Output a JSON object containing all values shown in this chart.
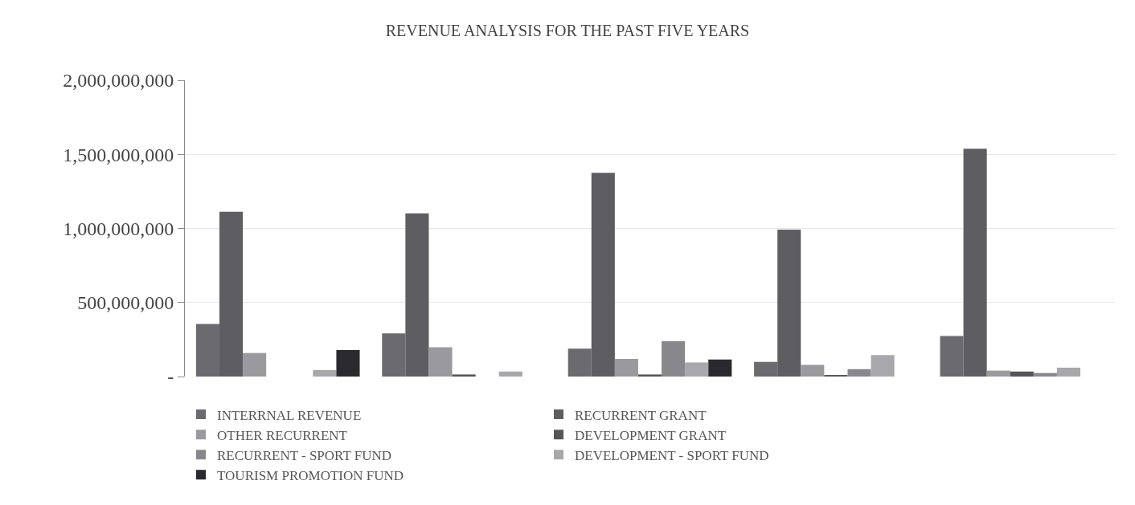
{
  "chart_data": {
    "type": "bar",
    "title": "REVENUE ANALYSIS FOR THE PAST FIVE YEARS",
    "categories": [
      null,
      null,
      null,
      null,
      null
    ],
    "series": [
      {
        "name": "INTERRNAL REVENUE",
        "color": "#6b6b6f",
        "values": [
          355000000,
          292000000,
          188000000,
          99000000,
          274000000
        ]
      },
      {
        "name": "RECURRENT GRANT",
        "color": "#5e5e62",
        "values": [
          1113000000,
          1101000000,
          1375000000,
          992000000,
          1538000000
        ]
      },
      {
        "name": "OTHER RECURRENT",
        "color": "#9a9a9e",
        "values": [
          159000000,
          198000000,
          119000000,
          79000000,
          40000000
        ]
      },
      {
        "name": "DEVELOPMENT GRANT",
        "color": "#56565a",
        "values": [
          null,
          14000000,
          14000000,
          8000000,
          34000000
        ]
      },
      {
        "name": "RECURRENT - SPORT FUND",
        "color": "#88888c",
        "values": [
          null,
          null,
          238000000,
          50000000,
          24000000
        ]
      },
      {
        "name": "DEVELOPMENT - SPORT FUND",
        "color": "#a8a8ac",
        "values": [
          44000000,
          34000000,
          95000000,
          145000000,
          60000000
        ]
      },
      {
        "name": "TOURISM PROMOTION FUND",
        "color": "#2a2a2e",
        "values": [
          179000000,
          null,
          115000000,
          null,
          null
        ]
      }
    ],
    "ylim": [
      0,
      2000000000
    ],
    "yticks": [
      {
        "value": 0,
        "label": "-"
      },
      {
        "value": 500000000,
        "label": "500,000,000"
      },
      {
        "value": 1000000000,
        "label": "1,000,000,000"
      },
      {
        "value": 1500000000,
        "label": "1,500,000,000"
      },
      {
        "value": 2000000000,
        "label": "2,000,000,000"
      }
    ],
    "grid": "y",
    "legend": "bottom"
  }
}
